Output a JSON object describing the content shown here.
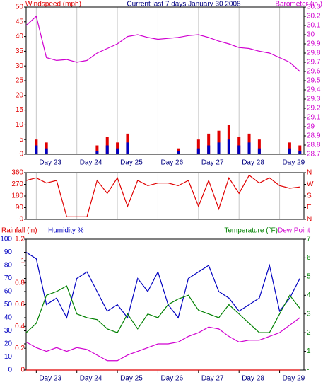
{
  "chart_data": [
    {
      "type": "combo",
      "title": "Current last 7 days January 30 2008",
      "ylabel": "Windspeed (mph)",
      "x": [
        22.75,
        23.0,
        23.25,
        23.5,
        23.75,
        24.0,
        24.25,
        24.5,
        24.75,
        25.0,
        25.25,
        25.5,
        25.75,
        26.0,
        26.25,
        26.5,
        26.75,
        27.0,
        27.25,
        27.5,
        27.75,
        28.0,
        28.25,
        28.5,
        28.75,
        29.0,
        29.25,
        29.5
      ],
      "xlim": [
        22.75,
        29.6
      ],
      "xticks": [
        {
          "value": 23,
          "label": "Day 23"
        },
        {
          "value": 24,
          "label": "Day 24"
        },
        {
          "value": 25,
          "label": "Day 25"
        },
        {
          "value": 26,
          "label": "Day 26"
        },
        {
          "value": 27,
          "label": "Day 27"
        },
        {
          "value": 28,
          "label": "Day 28"
        },
        {
          "value": 29,
          "label": "Day 29"
        }
      ],
      "ylim": [
        0,
        50
      ],
      "yticks": [
        0,
        5,
        10,
        15,
        20,
        25,
        30,
        35,
        40,
        45,
        50
      ],
      "ycolor": "#e00000",
      "y2lim": [
        28.7,
        30.3
      ],
      "y2ticks": [
        28.7,
        28.8,
        28.9,
        29,
        29.1,
        29.2,
        29.3,
        29.4,
        29.5,
        29.6,
        29.7,
        29.8,
        29.9,
        30,
        30.1,
        30.2,
        30.3
      ],
      "y2color": "#d000d0",
      "grid": true,
      "series": [
        {
          "type": "bar",
          "color": "#e00000",
          "values": [
            0,
            5,
            4,
            0,
            0,
            0,
            0,
            3,
            6,
            4,
            7,
            0,
            0,
            0,
            0,
            2,
            0,
            5,
            7,
            8,
            10,
            6,
            7,
            5,
            0,
            0,
            4,
            3
          ]
        },
        {
          "type": "bar",
          "color": "#0000c0",
          "values": [
            0,
            3,
            2,
            0,
            0,
            0,
            0,
            1,
            3,
            2,
            4,
            0,
            0,
            0,
            0,
            1,
            0,
            2,
            3,
            4,
            5,
            3,
            4,
            2,
            0,
            0,
            2,
            1
          ]
        },
        {
          "type": "line",
          "name": "Barometer (in.)",
          "axis": "y2",
          "color": "#d000d0",
          "values": [
            30.1,
            30.2,
            29.75,
            29.72,
            29.73,
            29.7,
            29.72,
            29.8,
            29.85,
            29.9,
            29.98,
            30.0,
            29.97,
            29.95,
            29.96,
            29.97,
            29.99,
            30.0,
            29.97,
            29.93,
            29.9,
            29.86,
            29.85,
            29.82,
            29.8,
            29.75,
            29.7,
            29.6
          ]
        }
      ]
    },
    {
      "type": "combo",
      "x": [
        22.75,
        23.0,
        23.25,
        23.5,
        23.75,
        24.0,
        24.25,
        24.5,
        24.75,
        25.0,
        25.25,
        25.5,
        25.75,
        26.0,
        26.25,
        26.5,
        26.75,
        27.0,
        27.25,
        27.5,
        27.75,
        28.0,
        28.25,
        28.5,
        28.75,
        29.0,
        29.25,
        29.5
      ],
      "xlim": [
        22.75,
        29.6
      ],
      "xticks": [
        23,
        24,
        25,
        26,
        27,
        28,
        29
      ],
      "ylim": [
        0,
        360
      ],
      "yticks": [
        0,
        90,
        180,
        270,
        360
      ],
      "ycolor": "#e00000",
      "y2lim": [
        0,
        360
      ],
      "y2ticks": [
        {
          "value": 0,
          "label": "N"
        },
        {
          "value": 90,
          "label": "E"
        },
        {
          "value": 180,
          "label": "S"
        },
        {
          "value": 270,
          "label": "W"
        },
        {
          "value": 360,
          "label": "N"
        }
      ],
      "y2color": "#e00000",
      "grid": true,
      "series": [
        {
          "type": "line",
          "color": "#e00000",
          "values": [
            300,
            320,
            280,
            300,
            20,
            20,
            20,
            300,
            200,
            320,
            100,
            300,
            260,
            280,
            280,
            260,
            300,
            100,
            300,
            80,
            320,
            200,
            340,
            280,
            320,
            260,
            240,
            250
          ]
        }
      ]
    },
    {
      "type": "combo",
      "x": [
        22.75,
        23.0,
        23.25,
        23.5,
        23.75,
        24.0,
        24.25,
        24.5,
        24.75,
        25.0,
        25.25,
        25.5,
        25.75,
        26.0,
        26.25,
        26.5,
        26.75,
        27.0,
        27.25,
        27.5,
        27.75,
        28.0,
        28.25,
        28.5,
        28.75,
        29.0,
        29.25,
        29.5
      ],
      "xlim": [
        22.75,
        29.6
      ],
      "xticks": [
        {
          "value": 23,
          "label": "Day 23"
        },
        {
          "value": 24,
          "label": "Day 24"
        },
        {
          "value": 25,
          "label": "Day 25"
        },
        {
          "value": 26,
          "label": "Day 26"
        },
        {
          "value": 27,
          "label": "Day 27"
        },
        {
          "value": 28,
          "label": "Day 28"
        },
        {
          "value": 29,
          "label": "Day 29"
        }
      ],
      "ylim": [
        0,
        1.2
      ],
      "yticks": [
        0,
        0.2,
        0.4,
        0.6,
        0.8,
        1,
        1.2
      ],
      "ycolor": "#e00000",
      "y3lim": [
        0,
        100
      ],
      "y3ticks": [
        0,
        10,
        20,
        30,
        40,
        50,
        60,
        70,
        80,
        90,
        100
      ],
      "y3color": "#0000c0",
      "y2lim": [
        0,
        70
      ],
      "y2ticks": [
        {
          "value": 0,
          "label": "-"
        },
        {
          "value": 10,
          "label": "1"
        },
        {
          "value": 20,
          "label": "2"
        },
        {
          "value": 30,
          "label": "3"
        },
        {
          "value": 40,
          "label": "4"
        },
        {
          "value": 50,
          "label": "5"
        },
        {
          "value": 60,
          "label": "6"
        },
        {
          "value": 70,
          "label": "7"
        }
      ],
      "y2color": "#008000",
      "grid": false,
      "series": [
        {
          "type": "line",
          "name": "Rainfall (in)",
          "axis": "y",
          "color": "#e00000",
          "values": [
            0,
            0,
            0,
            0,
            0,
            0,
            0,
            0,
            0,
            0,
            0,
            0,
            0,
            0,
            0,
            0,
            0,
            0,
            0,
            0,
            0,
            0,
            0,
            0,
            0,
            0,
            0,
            0
          ]
        },
        {
          "type": "line",
          "name": "Humidity %",
          "axis": "y3",
          "color": "#0000c0",
          "values": [
            90,
            85,
            50,
            55,
            40,
            70,
            75,
            60,
            45,
            50,
            40,
            70,
            60,
            75,
            50,
            40,
            70,
            75,
            80,
            60,
            55,
            45,
            50,
            55,
            80,
            45,
            55,
            70
          ]
        },
        {
          "type": "line",
          "name": "Temperature (°F)",
          "axis": "y2",
          "color": "#008000",
          "values": [
            20,
            25,
            40,
            42,
            45,
            30,
            28,
            27,
            22,
            20,
            30,
            22,
            30,
            28,
            35,
            38,
            40,
            32,
            30,
            28,
            35,
            30,
            25,
            20,
            20,
            30,
            40,
            33
          ]
        },
        {
          "type": "line",
          "name": "Dew Point",
          "axis": "y2",
          "color": "#d000d0",
          "values": [
            15,
            12,
            10,
            12,
            10,
            12,
            11,
            8,
            5,
            5,
            8,
            10,
            12,
            14,
            14,
            15,
            18,
            20,
            23,
            22,
            18,
            15,
            16,
            16,
            18,
            20,
            24,
            28
          ]
        }
      ]
    }
  ]
}
